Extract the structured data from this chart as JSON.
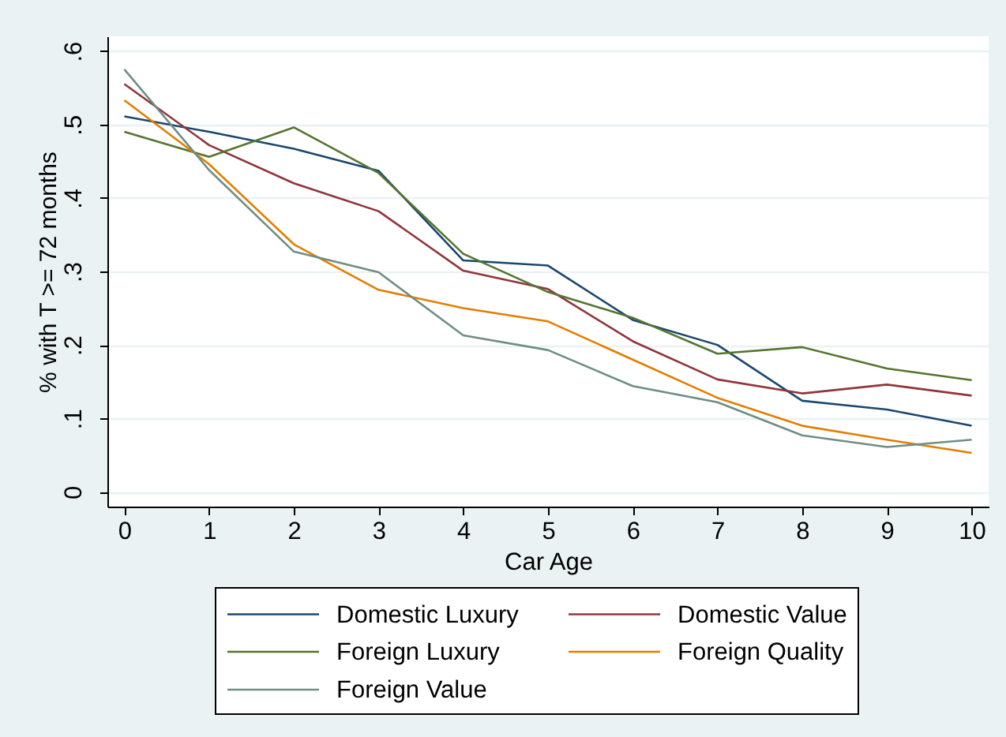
{
  "chart_data": {
    "type": "line",
    "xlabel": "Car Age",
    "ylabel": "% with T >= 72 months",
    "x": [
      0,
      1,
      2,
      3,
      4,
      5,
      6,
      7,
      8,
      9,
      10
    ],
    "series": [
      {
        "name": "Domestic Luxury",
        "color": "#1a476f",
        "values": [
          0.511,
          0.49,
          0.467,
          0.437,
          0.315,
          0.308,
          0.234,
          0.2,
          0.124,
          0.112,
          0.09
        ]
      },
      {
        "name": "Domestic Value",
        "color": "#90353b",
        "values": [
          0.555,
          0.472,
          0.42,
          0.382,
          0.301,
          0.276,
          0.205,
          0.153,
          0.134,
          0.146,
          0.131
        ]
      },
      {
        "name": "Foreign Luxury",
        "color": "#55752f",
        "values": [
          0.49,
          0.456,
          0.496,
          0.434,
          0.324,
          0.272,
          0.237,
          0.188,
          0.197,
          0.168,
          0.152
        ]
      },
      {
        "name": "Foreign Quality",
        "color": "#e37e00",
        "values": [
          0.533,
          0.446,
          0.337,
          0.275,
          0.25,
          0.232,
          0.18,
          0.128,
          0.09,
          0.071,
          0.053
        ]
      },
      {
        "name": "Foreign Value",
        "color": "#6e8e84",
        "values": [
          0.575,
          0.438,
          0.327,
          0.299,
          0.213,
          0.193,
          0.144,
          0.122,
          0.077,
          0.061,
          0.071
        ]
      }
    ],
    "xlim": [
      -0.2,
      10.2
    ],
    "xticks": [
      0,
      1,
      2,
      3,
      4,
      5,
      6,
      7,
      8,
      9,
      10
    ],
    "ylim": [
      -0.02,
      0.62
    ],
    "yticks": [
      0,
      {
        "value": 0.1,
        "label": ".1"
      },
      {
        "value": 0.2,
        "label": ".2"
      },
      {
        "value": 0.3,
        "label": ".3"
      },
      {
        "value": 0.4,
        "label": ".4"
      },
      {
        "value": 0.5,
        "label": ".5"
      },
      {
        "value": 0.6,
        "label": ".6"
      }
    ],
    "grid": "y",
    "legend": "bottom"
  }
}
